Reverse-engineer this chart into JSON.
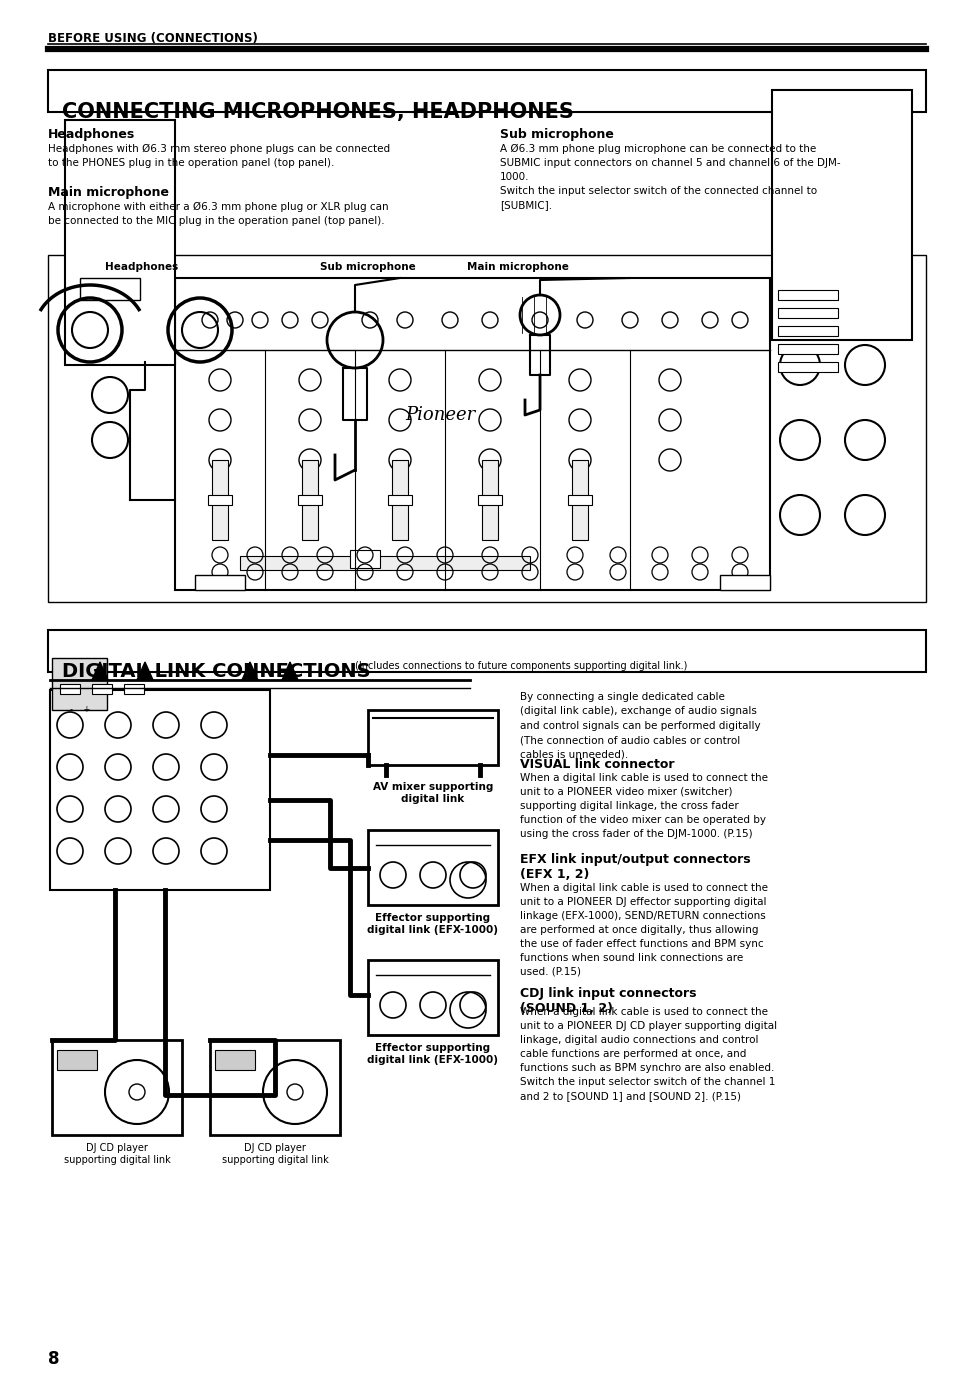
{
  "page_header": "BEFORE USING (CONNECTIONS)",
  "section1_title": "CONNECTING MICROPHONES, HEADPHONES",
  "headphones_title": "Headphones",
  "headphones_text": "Headphones with Ø6.3 mm stereo phone plugs can be connected\nto the PHONES plug in the operation panel (top panel).",
  "main_mic_title": "Main microphone",
  "main_mic_text": "A microphone with either a Ø6.3 mm phone plug or XLR plug can\nbe connected to the MIC plug in the operation panel (top panel).",
  "sub_mic_title": "Sub microphone",
  "sub_mic_text": "A Ø6.3 mm phone plug microphone can be connected to the\nSUBMIC input connectors on channel 5 and channel 6 of the DJM-\n1000.\nSwitch the input selector switch of the connected channel to\n[SUBMIC].",
  "diagram1_label_left": "Headphones",
  "diagram1_label_mid": "Sub microphone",
  "diagram1_label_right": "Main microphone",
  "section2_title": "DIGITAL LINK CONNECTIONS",
  "section2_subtitle": "(Includes connections to future components supporting digital link.)",
  "digital_intro": "By connecting a single dedicated cable\n(digital link cable), exchange of audio signals\nand control signals can be performed digitally\n(The connection of audio cables or control\ncables is unneeded).",
  "av_mixer_label": "AV mixer supporting\ndigital link",
  "effector1_label": "Effector supporting\ndigital link (EFX-1000)",
  "effector2_label": "Effector supporting\ndigital link (EFX-1000)",
  "dj_cd1_label": "DJ CD player\nsupporting digital link",
  "dj_cd2_label": "DJ CD player\nsupporting digital link",
  "visual_link_title": "VISUAL link connector",
  "visual_link_text": "When a digital link cable is used to connect the\nunit to a PIONEER video mixer (switcher)\nsupporting digital linkage, the cross fader\nfunction of the video mixer can be operated by\nusing the cross fader of the DJM-1000. (P.15)",
  "efx_link_title": "EFX link input/output connectors\n(EFX 1, 2)",
  "efx_link_text": "When a digital link cable is used to connect the\nunit to a PIONEER DJ effector supporting digital\nlinkage (EFX-1000), SEND/RETURN connections\nare performed at once digitally, thus allowing\nthe use of fader effect functions and BPM sync\nfunctions when sound link connections are\nused. (P.15)",
  "cdj_link_title": "CDJ link input connectors\n(SOUND 1, 2)",
  "cdj_link_text": "When a digital link cable is used to connect the\nunit to a PIONEER DJ CD player supporting digital\nlinkage, digital audio connections and control\ncable functions are performed at once, and\nfunctions such as BPM synchro are also enabled.\nSwitch the input selector switch of the channel 1\nand 2 to [SOUND 1] and [SOUND 2]. (P.15)",
  "page_number": "8",
  "bg_color": "#ffffff",
  "text_color": "#000000"
}
